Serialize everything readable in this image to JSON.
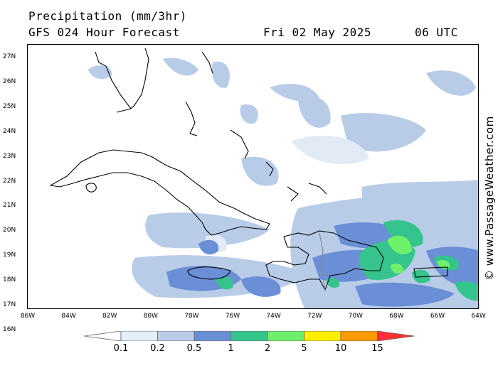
{
  "header": {
    "title": "Precipitation (mm/3hr)",
    "model": "GFS 024 Hour Forecast",
    "date": "Fri 02 May 2025",
    "time": "06 UTC"
  },
  "axes": {
    "lat_labels": [
      "27N",
      "26N",
      "25N",
      "24N",
      "23N",
      "22N",
      "21N",
      "20N",
      "19N",
      "18N",
      "17N",
      "16N"
    ],
    "lon_labels": [
      "86W",
      "84W",
      "82W",
      "80W",
      "78W",
      "76W",
      "74W",
      "72W",
      "70W",
      "68W",
      "66W",
      "64W"
    ]
  },
  "credit": "© www.PassageWeather.com",
  "legend": {
    "ticks": [
      "0.1",
      "0.2",
      "0.5",
      "1",
      "2",
      "5",
      "10",
      "15"
    ],
    "colors": [
      "#ffffff",
      "#e6eef8",
      "#b8cce8",
      "#6b8fd6",
      "#35c48d",
      "#6ef06a",
      "#ffee00",
      "#ff9900",
      "#ff3030"
    ]
  }
}
